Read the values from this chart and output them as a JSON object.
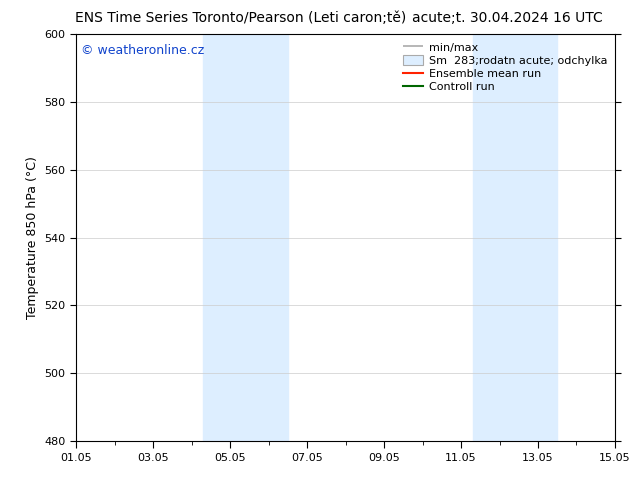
{
  "title_left": "ENS Time Series Toronto/Pearson (Leti caron;tě)",
  "title_right": "acute;t. 30.04.2024 16 UTC",
  "ylabel": "Temperature 850 hPa (°C)",
  "ylim": [
    480,
    600
  ],
  "yticks": [
    480,
    500,
    520,
    540,
    560,
    580,
    600
  ],
  "xtick_labels": [
    "01.05",
    "03.05",
    "05.05",
    "07.05",
    "09.05",
    "11.05",
    "13.05",
    "15.05"
  ],
  "xtick_positions": [
    0,
    2,
    4,
    6,
    8,
    10,
    12,
    14
  ],
  "shaded_bands": [
    {
      "start": 3.3,
      "end": 5.5
    },
    {
      "start": 10.3,
      "end": 12.5
    }
  ],
  "shade_color": "#ddeeff",
  "watermark": "© weatheronline.cz",
  "watermark_color": "#1144cc",
  "legend_labels": [
    "min/max",
    "Sm  283;rodatn acute; odchylka",
    "Ensemble mean run",
    "Controll run"
  ],
  "legend_colors_line": [
    "#aaaaaa",
    null,
    "#ff2200",
    "#006600"
  ],
  "legend_box_color": "#ddeeff",
  "legend_box_edge": "#aaaaaa",
  "bg_color": "#ffffff",
  "plot_bg_color": "#ffffff",
  "font_size_title": 10,
  "font_size_axis": 9,
  "font_size_ticks": 8,
  "font_size_legend": 8,
  "font_size_watermark": 9,
  "grid_color": "#cccccc"
}
